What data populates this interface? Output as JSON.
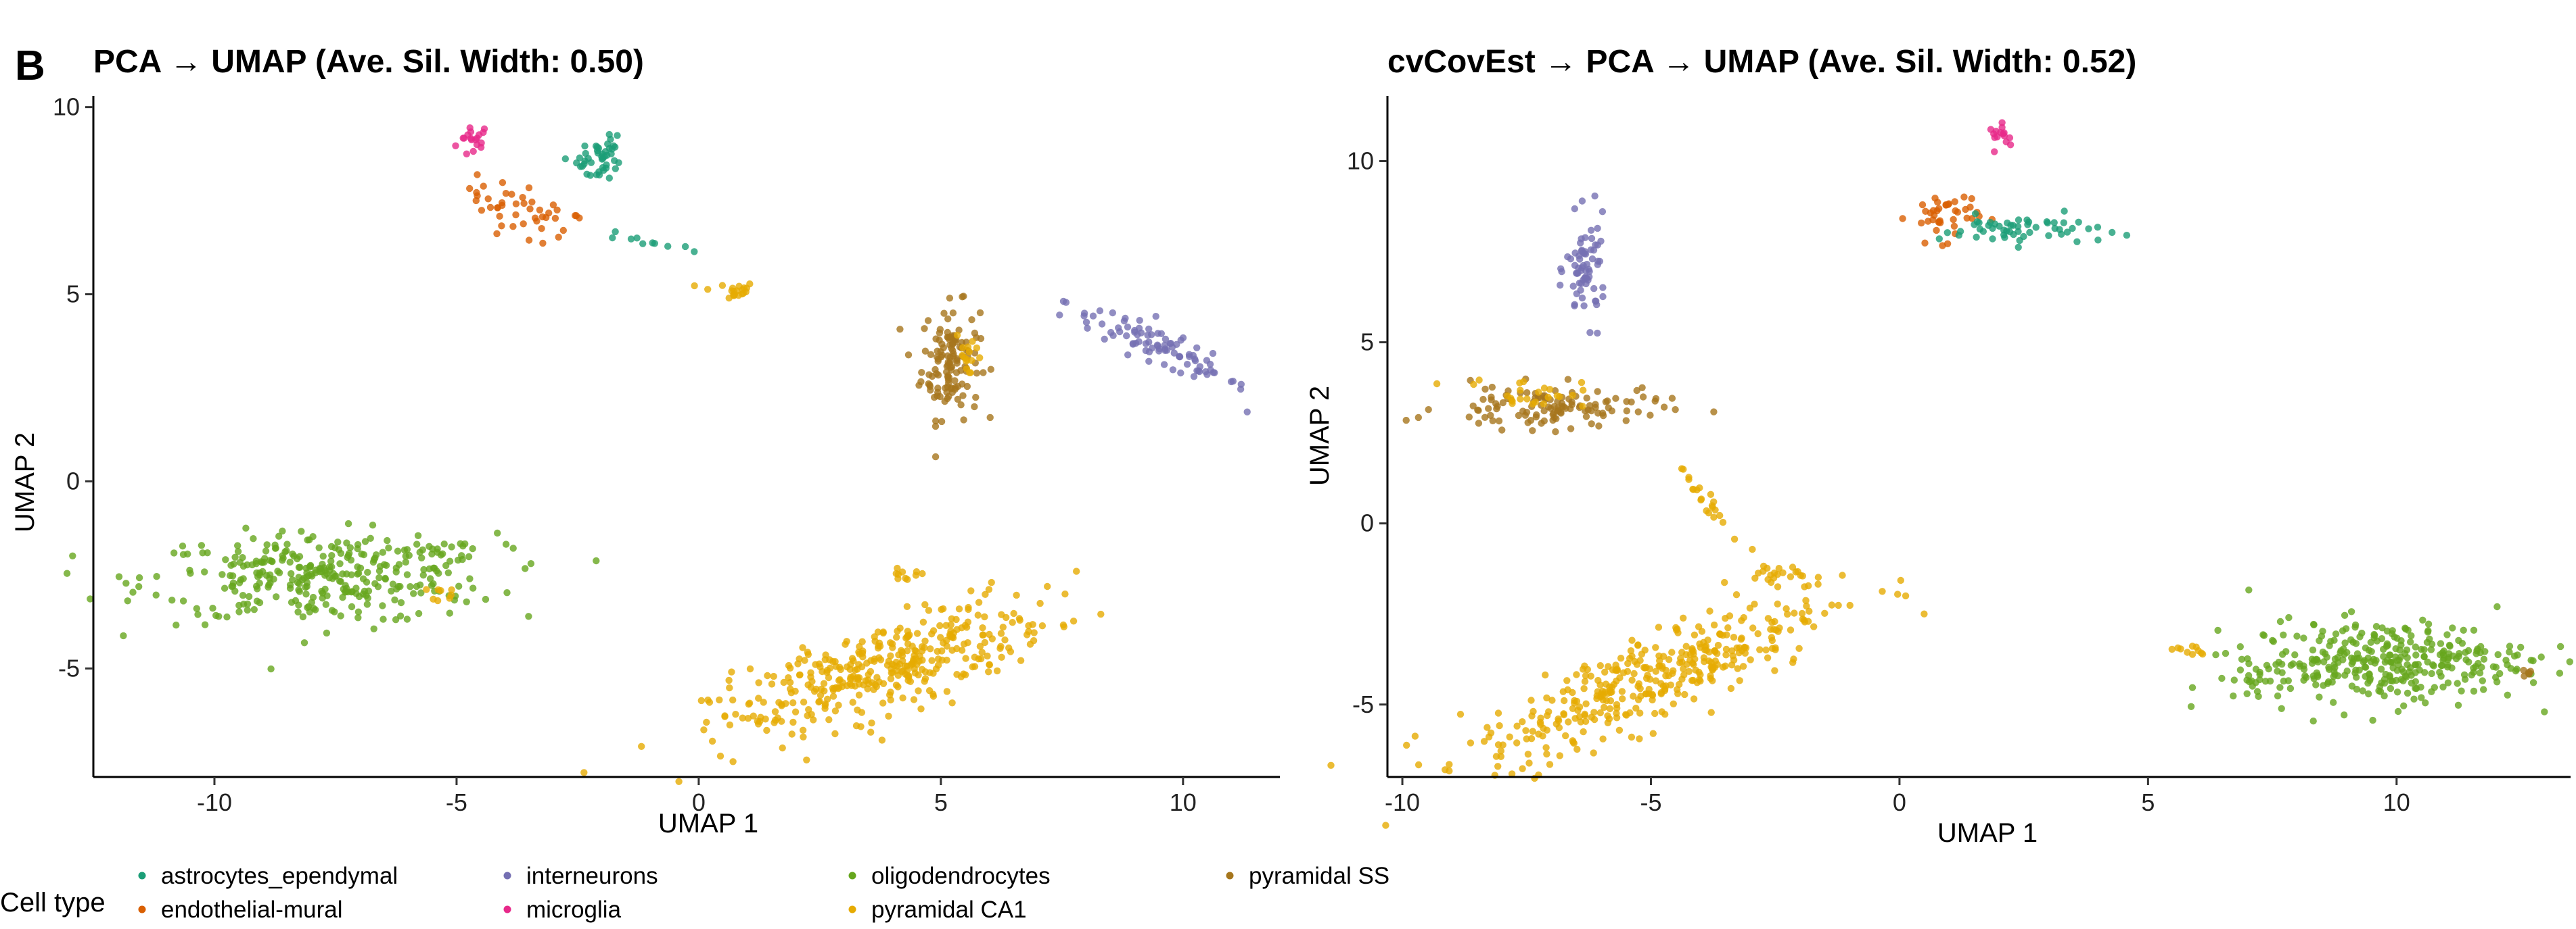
{
  "panel_label": "B",
  "legend": {
    "title": "Cell type",
    "entries": [
      {
        "label": "astrocytes_ependymal",
        "color": "#1b9e77"
      },
      {
        "label": "endothelial-mural",
        "color": "#d95f02"
      },
      {
        "label": "interneurons",
        "color": "#7570b3"
      },
      {
        "label": "microglia",
        "color": "#e7298a"
      },
      {
        "label": "oligodendrocytes",
        "color": "#66a61e"
      },
      {
        "label": "pyramidal CA1",
        "color": "#e6ab02"
      },
      {
        "label": "pyramidal SS",
        "color": "#a6761d"
      }
    ]
  },
  "chart_data": [
    {
      "type": "scatter",
      "title": "PCA → UMAP (Ave. Sil. Width: 0.50)",
      "xlabel": "UMAP 1",
      "ylabel": "UMAP 2",
      "xlim": [
        -12.5,
        12.0
      ],
      "ylim": [
        -7.9,
        10.3
      ],
      "xticks": [
        -10,
        -5,
        0,
        5,
        10
      ],
      "xtick_labels": [
        "-10",
        "-5",
        "0",
        "5",
        "10"
      ],
      "yticks": [
        -5,
        0,
        5,
        10
      ],
      "ytick_labels": [
        "-5",
        "0",
        "5",
        "10"
      ],
      "grid": false,
      "clusters": [
        {
          "series": "microglia",
          "cx": -4.65,
          "cy": 9.1,
          "sx": 0.18,
          "sy": 0.25,
          "angle": 0,
          "n": 18
        },
        {
          "series": "endothelial-mural",
          "cx": -3.6,
          "cy": 7.2,
          "sx": 0.65,
          "sy": 0.3,
          "angle": -30,
          "n": 45
        },
        {
          "series": "astrocytes_ependymal",
          "cx": -2.1,
          "cy": 8.6,
          "sx": 0.25,
          "sy": 0.3,
          "angle": -45,
          "n": 45
        },
        {
          "series": "astrocytes_ependymal",
          "cx": -1.0,
          "cy": 6.4,
          "sx": 0.5,
          "sy": 0.07,
          "angle": -15,
          "n": 10
        },
        {
          "series": "pyramidal CA1",
          "cx": 0.6,
          "cy": 5.1,
          "sx": 0.3,
          "sy": 0.12,
          "angle": 0,
          "n": 20
        },
        {
          "series": "pyramidal SS",
          "cx": 5.2,
          "cy": 3.2,
          "sx": 0.3,
          "sy": 0.75,
          "angle": 0,
          "n": 130
        },
        {
          "series": "pyramidal CA1",
          "cx": 5.6,
          "cy": 3.4,
          "sx": 0.15,
          "sy": 0.4,
          "angle": 0,
          "n": 15
        },
        {
          "series": "interneurons",
          "cx": 9.5,
          "cy": 3.6,
          "sx": 1.1,
          "sy": 0.2,
          "angle": -32,
          "n": 90
        },
        {
          "series": "oligodendrocytes",
          "cx": -7.8,
          "cy": -2.6,
          "sx": 1.8,
          "sy": 0.6,
          "angle": 0,
          "n": 320
        },
        {
          "series": "oligodendrocytes",
          "cx": -5.5,
          "cy": -1.8,
          "sx": 0.7,
          "sy": 0.15,
          "angle": 0,
          "n": 20
        },
        {
          "series": "pyramidal CA1",
          "cx": -5.1,
          "cy": -3.0,
          "sx": 0.2,
          "sy": 0.1,
          "angle": 0,
          "n": 8
        },
        {
          "series": "pyramidal CA1",
          "cx": 3.8,
          "cy": -5.0,
          "sx": 1.8,
          "sy": 0.55,
          "angle": 25,
          "n": 380
        },
        {
          "series": "pyramidal CA1",
          "cx": 4.2,
          "cy": -2.5,
          "sx": 0.25,
          "sy": 0.08,
          "angle": 0,
          "n": 10
        },
        {
          "series": "pyramidal CA1",
          "cx": 1.4,
          "cy": -6.4,
          "sx": 0.2,
          "sy": 0.05,
          "angle": 0,
          "n": 8
        }
      ]
    },
    {
      "type": "scatter",
      "title": "cvCovEst → PCA → UMAP (Ave. Sil. Width: 0.52)",
      "xlabel": "UMAP 1",
      "ylabel": "UMAP 2",
      "xlim": [
        -10.3,
        13.5
      ],
      "ylim": [
        -7.0,
        11.8
      ],
      "xticks": [
        -10,
        -5,
        0,
        5,
        10
      ],
      "xtick_labels": [
        "-10",
        "-5",
        "0",
        "5",
        "10"
      ],
      "yticks": [
        -5,
        0,
        5,
        10
      ],
      "ytick_labels": [
        "-5",
        "0",
        "5",
        "10"
      ],
      "grid": false,
      "clusters": [
        {
          "series": "microglia",
          "cx": 2.1,
          "cy": 10.7,
          "sx": 0.15,
          "sy": 0.15,
          "angle": 0,
          "n": 15
        },
        {
          "series": "endothelial-mural",
          "cx": 0.9,
          "cy": 8.5,
          "sx": 0.35,
          "sy": 0.35,
          "angle": 0,
          "n": 40
        },
        {
          "series": "astrocytes_ependymal",
          "cx": 2.4,
          "cy": 8.1,
          "sx": 0.8,
          "sy": 0.2,
          "angle": 0,
          "n": 55
        },
        {
          "series": "interneurons",
          "cx": -6.3,
          "cy": 7.0,
          "sx": 0.2,
          "sy": 0.7,
          "angle": 0,
          "n": 70
        },
        {
          "series": "pyramidal SS",
          "cx": -7.0,
          "cy": 3.2,
          "sx": 1.1,
          "sy": 0.3,
          "angle": 0,
          "n": 120
        },
        {
          "series": "pyramidal CA1",
          "cx": -7.5,
          "cy": 3.6,
          "sx": 0.6,
          "sy": 0.2,
          "angle": 0,
          "n": 25
        },
        {
          "series": "pyramidal CA1",
          "cx": -3.8,
          "cy": 0.5,
          "sx": 0.7,
          "sy": 0.1,
          "angle": -60,
          "n": 22
        },
        {
          "series": "pyramidal CA1",
          "cx": -2.5,
          "cy": -1.4,
          "sx": 0.4,
          "sy": 0.15,
          "angle": 0,
          "n": 22
        },
        {
          "series": "pyramidal CA1",
          "cx": -5.0,
          "cy": -4.3,
          "sx": 2.0,
          "sy": 0.55,
          "angle": 30,
          "n": 380
        },
        {
          "series": "oligodendrocytes",
          "cx": 9.8,
          "cy": -3.8,
          "sx": 1.4,
          "sy": 0.55,
          "angle": 0,
          "n": 320
        },
        {
          "series": "oligodendrocytes",
          "cx": 7.3,
          "cy": -4.3,
          "sx": 0.8,
          "sy": 0.25,
          "angle": 20,
          "n": 35
        },
        {
          "series": "pyramidal CA1",
          "cx": 5.9,
          "cy": -3.5,
          "sx": 0.3,
          "sy": 0.1,
          "angle": 0,
          "n": 10
        },
        {
          "series": "pyramidal SS",
          "cx": 12.6,
          "cy": -4.1,
          "sx": 0.1,
          "sy": 0.05,
          "angle": 0,
          "n": 5
        }
      ]
    }
  ]
}
